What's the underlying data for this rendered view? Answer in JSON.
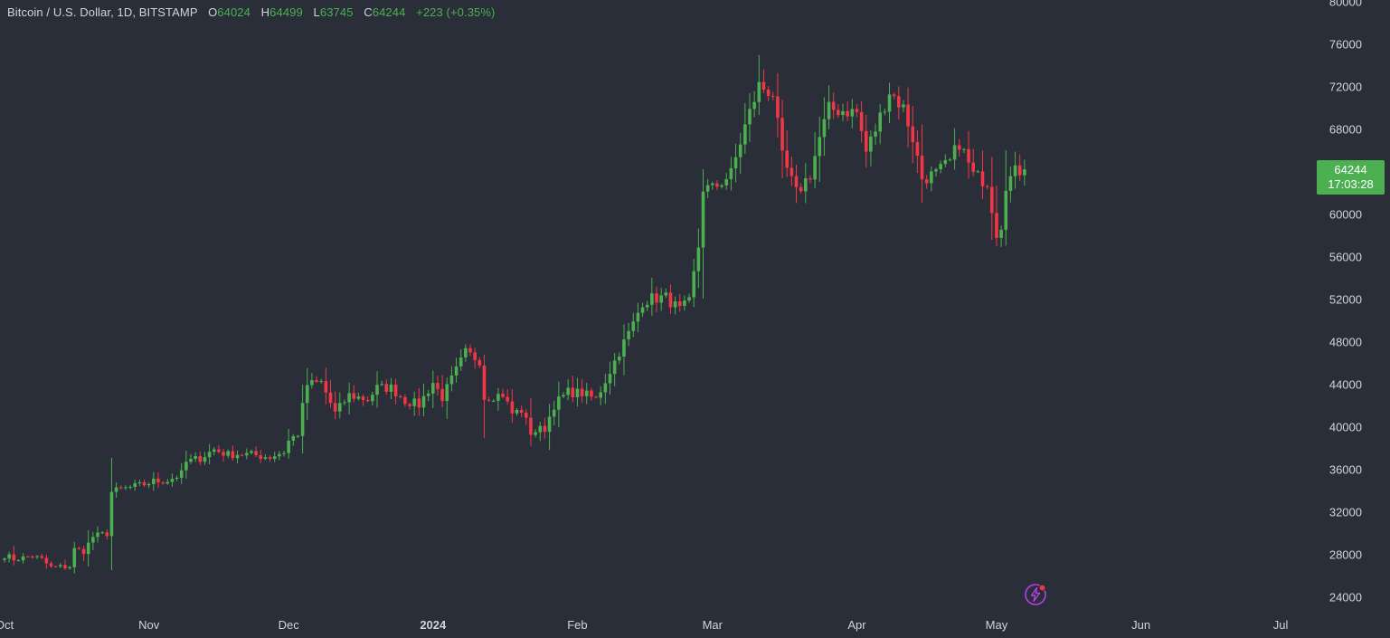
{
  "legend": {
    "symbol": "Bitcoin / U.S. Dollar, 1D, BITSTAMP",
    "open_label": "O",
    "open": "64024",
    "high_label": "H",
    "high": "64499",
    "low_label": "L",
    "low": "63745",
    "close_label": "C",
    "close": "64244",
    "change": "+223 (+0.35%)"
  },
  "price_tag": {
    "price": "64244",
    "countdown": "17:03:28"
  },
  "colors": {
    "background": "#2a2e39",
    "up": "#4caf50",
    "down": "#f23645",
    "text": "#d1d4dc"
  },
  "icons": {
    "bolt": "lightning-bolt-icon"
  },
  "chart_data": {
    "type": "candlestick",
    "ylim": [
      22000,
      80000
    ],
    "y_ticks": [
      "80000",
      "76000",
      "72000",
      "68000",
      "64000",
      "60000",
      "56000",
      "52000",
      "48000",
      "44000",
      "40000",
      "36000",
      "32000",
      "28000",
      "24000"
    ],
    "x_ticks": [
      "Oct",
      "Nov",
      "Dec",
      "2024",
      "Feb",
      "Mar",
      "Apr",
      "May",
      "Jun",
      "Jul"
    ],
    "x_tick_dates": [
      "2023-10-01",
      "2023-11-01",
      "2023-12-01",
      "2024-01-01",
      "2024-02-01",
      "2024-03-01",
      "2024-04-01",
      "2024-05-01",
      "2024-06-01",
      "2024-07-01"
    ],
    "grid": false,
    "closes": [
      [
        "2023-10-01",
        27950
      ],
      [
        "2023-10-03",
        27600
      ],
      [
        "2023-10-05",
        27700
      ],
      [
        "2023-10-07",
        27900
      ],
      [
        "2023-10-09",
        27550
      ],
      [
        "2023-10-11",
        26800
      ],
      [
        "2023-10-13",
        26850
      ],
      [
        "2023-10-15",
        26900
      ],
      [
        "2023-10-16",
        28500
      ],
      [
        "2023-10-18",
        28350
      ],
      [
        "2023-10-20",
        29700
      ],
      [
        "2023-10-23",
        30000
      ],
      [
        "2023-10-24",
        33900
      ],
      [
        "2023-10-26",
        34150
      ],
      [
        "2023-10-30",
        34500
      ],
      [
        "2023-11-02",
        34900
      ],
      [
        "2023-11-05",
        35000
      ],
      [
        "2023-11-08",
        35600
      ],
      [
        "2023-11-09",
        36700
      ],
      [
        "2023-11-12",
        37100
      ],
      [
        "2023-11-15",
        37900
      ],
      [
        "2023-11-18",
        37400
      ],
      [
        "2023-11-20",
        37500
      ],
      [
        "2023-11-23",
        37400
      ],
      [
        "2023-11-27",
        37200
      ],
      [
        "2023-11-30",
        37700
      ],
      [
        "2023-12-01",
        38700
      ],
      [
        "2023-12-03",
        39400
      ],
      [
        "2023-12-04",
        41900
      ],
      [
        "2023-12-05",
        44000
      ],
      [
        "2023-12-08",
        44200
      ],
      [
        "2023-12-11",
        41300
      ],
      [
        "2023-12-14",
        43000
      ],
      [
        "2023-12-18",
        42600
      ],
      [
        "2023-12-20",
        43700
      ],
      [
        "2023-12-23",
        43700
      ],
      [
        "2023-12-26",
        42500
      ],
      [
        "2023-12-29",
        42100
      ],
      [
        "2024-01-01",
        44200
      ],
      [
        "2024-01-03",
        42800
      ],
      [
        "2024-01-08",
        47000
      ],
      [
        "2024-01-11",
        46300
      ],
      [
        "2024-01-12",
        42800
      ],
      [
        "2024-01-16",
        43100
      ],
      [
        "2024-01-18",
        41300
      ],
      [
        "2024-01-20",
        41600
      ],
      [
        "2024-01-22",
        39500
      ],
      [
        "2024-01-25",
        39900
      ],
      [
        "2024-01-27",
        42100
      ],
      [
        "2024-01-30",
        43300
      ],
      [
        "2024-02-02",
        43200
      ],
      [
        "2024-02-05",
        42600
      ],
      [
        "2024-02-08",
        45300
      ],
      [
        "2024-02-10",
        47100
      ],
      [
        "2024-02-13",
        49700
      ],
      [
        "2024-02-15",
        51800
      ],
      [
        "2024-02-17",
        52100
      ],
      [
        "2024-02-20",
        52200
      ],
      [
        "2024-02-23",
        51000
      ],
      [
        "2024-02-25",
        51700
      ],
      [
        "2024-02-27",
        57000
      ],
      [
        "2024-02-28",
        62500
      ],
      [
        "2024-03-01",
        62400
      ],
      [
        "2024-03-03",
        63100
      ],
      [
        "2024-03-05",
        63800
      ],
      [
        "2024-03-08",
        68300
      ],
      [
        "2024-03-11",
        72100
      ],
      [
        "2024-03-14",
        71400
      ],
      [
        "2024-03-16",
        65300
      ],
      [
        "2024-03-19",
        62000
      ],
      [
        "2024-03-22",
        63800
      ],
      [
        "2024-03-24",
        67200
      ],
      [
        "2024-03-26",
        69900
      ],
      [
        "2024-03-29",
        69800
      ],
      [
        "2024-04-01",
        69600
      ],
      [
        "2024-04-03",
        65900
      ],
      [
        "2024-04-05",
        68000
      ],
      [
        "2024-04-08",
        71600
      ],
      [
        "2024-04-11",
        70000
      ],
      [
        "2024-04-13",
        67200
      ],
      [
        "2024-04-15",
        63400
      ],
      [
        "2024-04-18",
        63800
      ],
      [
        "2024-04-21",
        64900
      ],
      [
        "2024-04-23",
        66800
      ],
      [
        "2024-04-26",
        63700
      ],
      [
        "2024-04-29",
        63100
      ],
      [
        "2024-05-01",
        58300
      ],
      [
        "2024-05-02",
        59100
      ],
      [
        "2024-05-03",
        62900
      ],
      [
        "2024-05-05",
        64000
      ],
      [
        "2024-05-07",
        64244
      ]
    ]
  }
}
